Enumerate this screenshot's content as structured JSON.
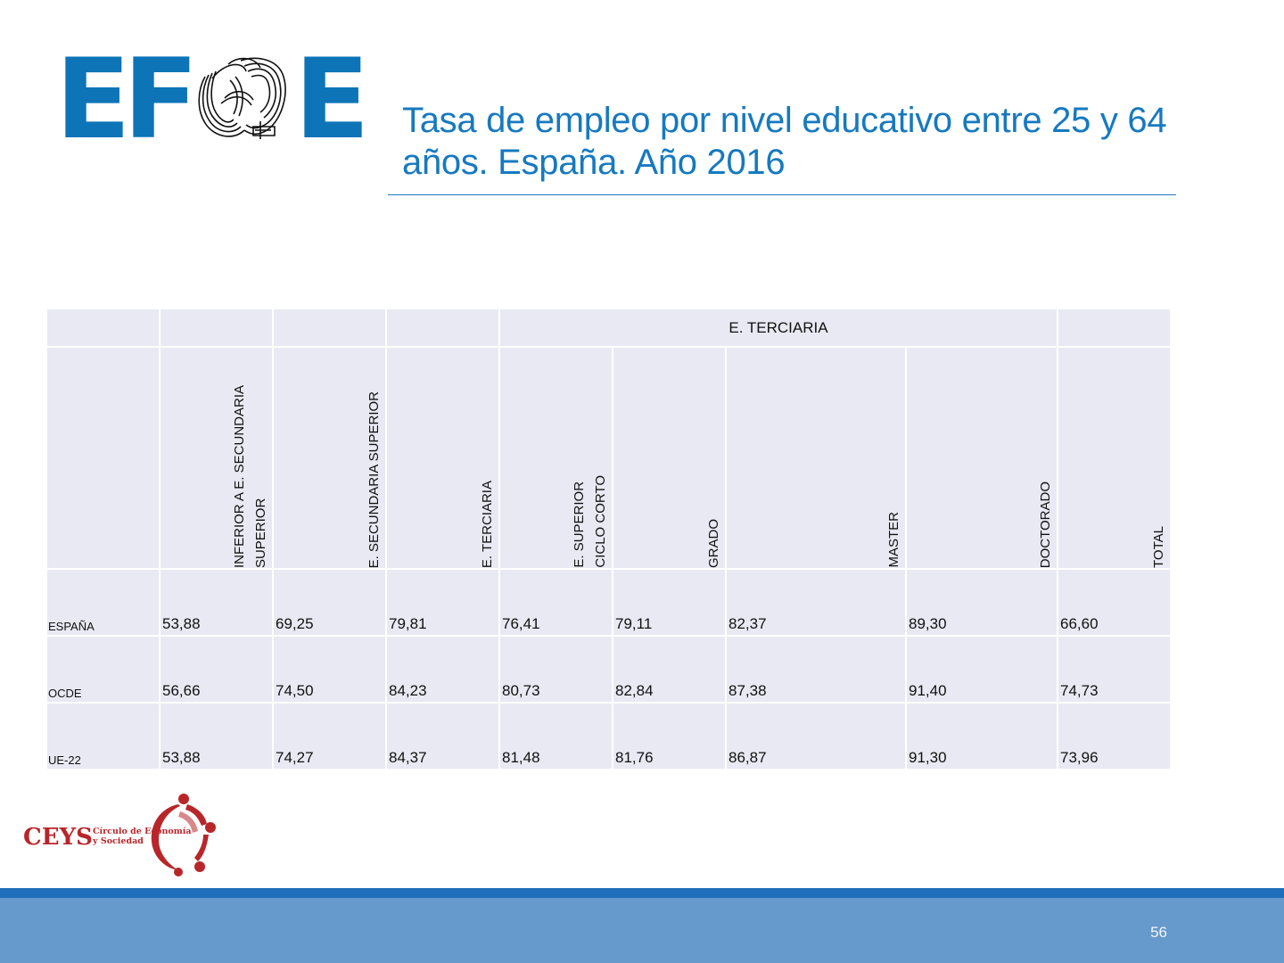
{
  "logo": {
    "name": "EFSE",
    "letters": [
      "E",
      "F",
      "E"
    ],
    "color": "#0d74b8",
    "icon": "efse-swirl-icon"
  },
  "title": "Tasa de empleo por nivel educativo entre 25 y 64 años. España. Año 2016",
  "table": {
    "group_header": "E. TERCIARIA",
    "columns": [
      [
        "INFERIOR A E. SECUNDARIA",
        "SUPERIOR"
      ],
      [
        "E. SECUNDARIA SUPERIOR"
      ],
      [
        "E. TERCIARIA"
      ],
      [
        "E. SUPERIOR",
        "CICLO CORTO"
      ],
      [
        "GRADO"
      ],
      [
        "MASTER"
      ],
      [
        "DOCTORADO"
      ],
      [
        "TOTAL"
      ]
    ],
    "rows": [
      {
        "label": "ESPAÑA",
        "values": [
          "53,88",
          "69,25",
          "79,81",
          "76,41",
          "79,11",
          "82,37",
          "89,30",
          "66,60"
        ]
      },
      {
        "label": "OCDE",
        "values": [
          "56,66",
          "74,50",
          "84,23",
          "80,73",
          "82,84",
          "87,38",
          "91,40",
          "74,73"
        ]
      },
      {
        "label": "UE-22",
        "values": [
          "53,88",
          "74,27",
          "84,37",
          "81,48",
          "81,76",
          "86,87",
          "91,30",
          "73,96"
        ]
      }
    ]
  },
  "ceys_logo": {
    "acronym": "CEYS",
    "line1": "Círculo de Economía",
    "line2": "y Sociedad",
    "color": "#b8262a",
    "icon": "ceys-people-circle-icon"
  },
  "footer": {
    "page_number": "56",
    "band_color": "#6699cc",
    "line_color": "#1f6fba"
  }
}
